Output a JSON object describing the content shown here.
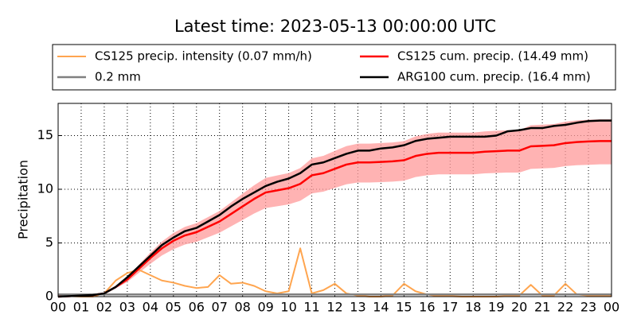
{
  "chart_data": {
    "type": "line",
    "title": "Latest time: 2023-05-13 00:00:00 UTC",
    "y_label": "Precipitation",
    "x": [
      0,
      0.5,
      1,
      1.5,
      2,
      2.5,
      3,
      3.5,
      4,
      4.5,
      5,
      5.5,
      6,
      6.5,
      7,
      7.5,
      8,
      8.5,
      9,
      9.5,
      10,
      10.5,
      11,
      11.5,
      12,
      12.5,
      13,
      13.5,
      14,
      14.5,
      15,
      15.5,
      16,
      16.5,
      17,
      17.5,
      18,
      18.5,
      19,
      19.5,
      20,
      20.5,
      21,
      21.5,
      22,
      22.5,
      23,
      23.5,
      24
    ],
    "band": {
      "color": "#ff9999",
      "lower": [
        0,
        0.04,
        0.09,
        0.13,
        0.26,
        0.77,
        1.36,
        2.21,
        3.06,
        3.83,
        4.42,
        4.85,
        5.1,
        5.53,
        5.95,
        6.55,
        7.14,
        7.74,
        8.25,
        8.42,
        8.59,
        8.93,
        9.61,
        9.78,
        10.12,
        10.46,
        10.63,
        10.63,
        10.67,
        10.71,
        10.8,
        11.14,
        11.31,
        11.39,
        11.39,
        11.39,
        11.39,
        11.48,
        11.52,
        11.56,
        11.56,
        11.9,
        11.94,
        11.99,
        12.16,
        12.24,
        12.28,
        12.32,
        12.32
      ],
      "upper": [
        0,
        0.06,
        0.11,
        0.17,
        0.34,
        1.03,
        1.82,
        2.96,
        4.1,
        5.13,
        5.93,
        6.5,
        6.84,
        7.41,
        7.98,
        8.78,
        9.58,
        10.37,
        11.06,
        11.29,
        11.51,
        11.97,
        12.88,
        13.11,
        13.57,
        14.02,
        14.25,
        14.25,
        14.31,
        14.36,
        14.48,
        14.93,
        15.16,
        15.28,
        15.28,
        15.28,
        15.28,
        15.39,
        15.45,
        15.5,
        15.5,
        15.96,
        16.02,
        16.07,
        16.3,
        16.42,
        16.47,
        16.52,
        16.52
      ]
    },
    "series": [
      {
        "name": "CS125 precip. intensity (0.07 mm/h)",
        "color": "#ffa54f",
        "width": 2,
        "values": [
          0.1,
          0.05,
          0,
          0,
          0.3,
          1.5,
          2.2,
          2.5,
          2.0,
          1.5,
          1.3,
          1.0,
          0.8,
          0.9,
          2.0,
          1.2,
          1.3,
          1.0,
          0.5,
          0.3,
          0.5,
          4.5,
          0.3,
          0.6,
          1.2,
          0.3,
          0.1,
          0,
          0,
          0.1,
          1.2,
          0.5,
          0.2,
          0.05,
          0.05,
          0,
          0,
          0,
          0,
          0.05,
          0.1,
          1.1,
          0.1,
          0.1,
          1.2,
          0.2,
          0.1,
          0.1,
          0.07
        ]
      },
      {
        "name": "CS125 cum. precip. (14.49 mm)",
        "color": "#ff0000",
        "width": 2.5,
        "values": [
          0,
          0.05,
          0.1,
          0.15,
          0.3,
          0.9,
          1.6,
          2.6,
          3.6,
          4.5,
          5.2,
          5.7,
          6.0,
          6.5,
          7.0,
          7.7,
          8.4,
          9.1,
          9.7,
          9.9,
          10.1,
          10.5,
          11.3,
          11.5,
          11.9,
          12.3,
          12.5,
          12.5,
          12.55,
          12.6,
          12.7,
          13.1,
          13.3,
          13.4,
          13.4,
          13.4,
          13.4,
          13.5,
          13.55,
          13.6,
          13.6,
          14.0,
          14.05,
          14.1,
          14.3,
          14.4,
          14.45,
          14.49,
          14.49
        ]
      },
      {
        "name": "0.2 mm",
        "color": "#808080",
        "width": 2.5,
        "values": [
          0.2,
          0.2,
          0.2,
          0.2,
          0.2,
          0.2,
          0.2,
          0.2,
          0.2,
          0.2,
          0.2,
          0.2,
          0.2,
          0.2,
          0.2,
          0.2,
          0.2,
          0.2,
          0.2,
          0.2,
          0.2,
          0.2,
          0.2,
          0.2,
          0.2,
          0.2,
          0.2,
          0.2,
          0.2,
          0.2,
          0.2,
          0.2,
          0.2,
          0.2,
          0.2,
          0.2,
          0.2,
          0.2,
          0.2,
          0.2,
          0.2,
          0.2,
          0.2,
          0.2,
          0.2,
          0.2,
          0.2,
          0.2,
          0.2
        ]
      },
      {
        "name": "ARG100 cum. precip. (16.4 mm)",
        "color": "#000000",
        "width": 2.5,
        "values": [
          0,
          0.05,
          0.1,
          0.15,
          0.3,
          0.9,
          1.8,
          2.8,
          3.8,
          4.8,
          5.5,
          6.1,
          6.4,
          7.0,
          7.6,
          8.4,
          9.1,
          9.7,
          10.3,
          10.7,
          11.0,
          11.5,
          12.3,
          12.5,
          12.9,
          13.3,
          13.6,
          13.6,
          13.8,
          13.9,
          14.1,
          14.5,
          14.7,
          14.8,
          14.9,
          14.9,
          14.9,
          14.9,
          15.0,
          15.4,
          15.5,
          15.7,
          15.7,
          15.9,
          16.0,
          16.2,
          16.35,
          16.4,
          16.4
        ]
      }
    ],
    "xlim": [
      0,
      24
    ],
    "xticks": [
      {
        "value": 0,
        "label": "00"
      },
      {
        "value": 1,
        "label": "01"
      },
      {
        "value": 2,
        "label": "02"
      },
      {
        "value": 3,
        "label": "03"
      },
      {
        "value": 4,
        "label": "04"
      },
      {
        "value": 5,
        "label": "05"
      },
      {
        "value": 6,
        "label": "06"
      },
      {
        "value": 7,
        "label": "07"
      },
      {
        "value": 8,
        "label": "08"
      },
      {
        "value": 9,
        "label": "09"
      },
      {
        "value": 10,
        "label": "10"
      },
      {
        "value": 11,
        "label": "11"
      },
      {
        "value": 12,
        "label": "12"
      },
      {
        "value": 13,
        "label": "13"
      },
      {
        "value": 14,
        "label": "14"
      },
      {
        "value": 15,
        "label": "15"
      },
      {
        "value": 16,
        "label": "16"
      },
      {
        "value": 17,
        "label": "17"
      },
      {
        "value": 18,
        "label": "18"
      },
      {
        "value": 19,
        "label": "19"
      },
      {
        "value": 20,
        "label": "20"
      },
      {
        "value": 21,
        "label": "21"
      },
      {
        "value": 22,
        "label": "22"
      },
      {
        "value": 23,
        "label": "23"
      },
      {
        "value": 24,
        "label": "00"
      }
    ],
    "ylim": [
      0,
      18
    ],
    "yticks": [
      0,
      5,
      10,
      15
    ],
    "grid": true
  }
}
